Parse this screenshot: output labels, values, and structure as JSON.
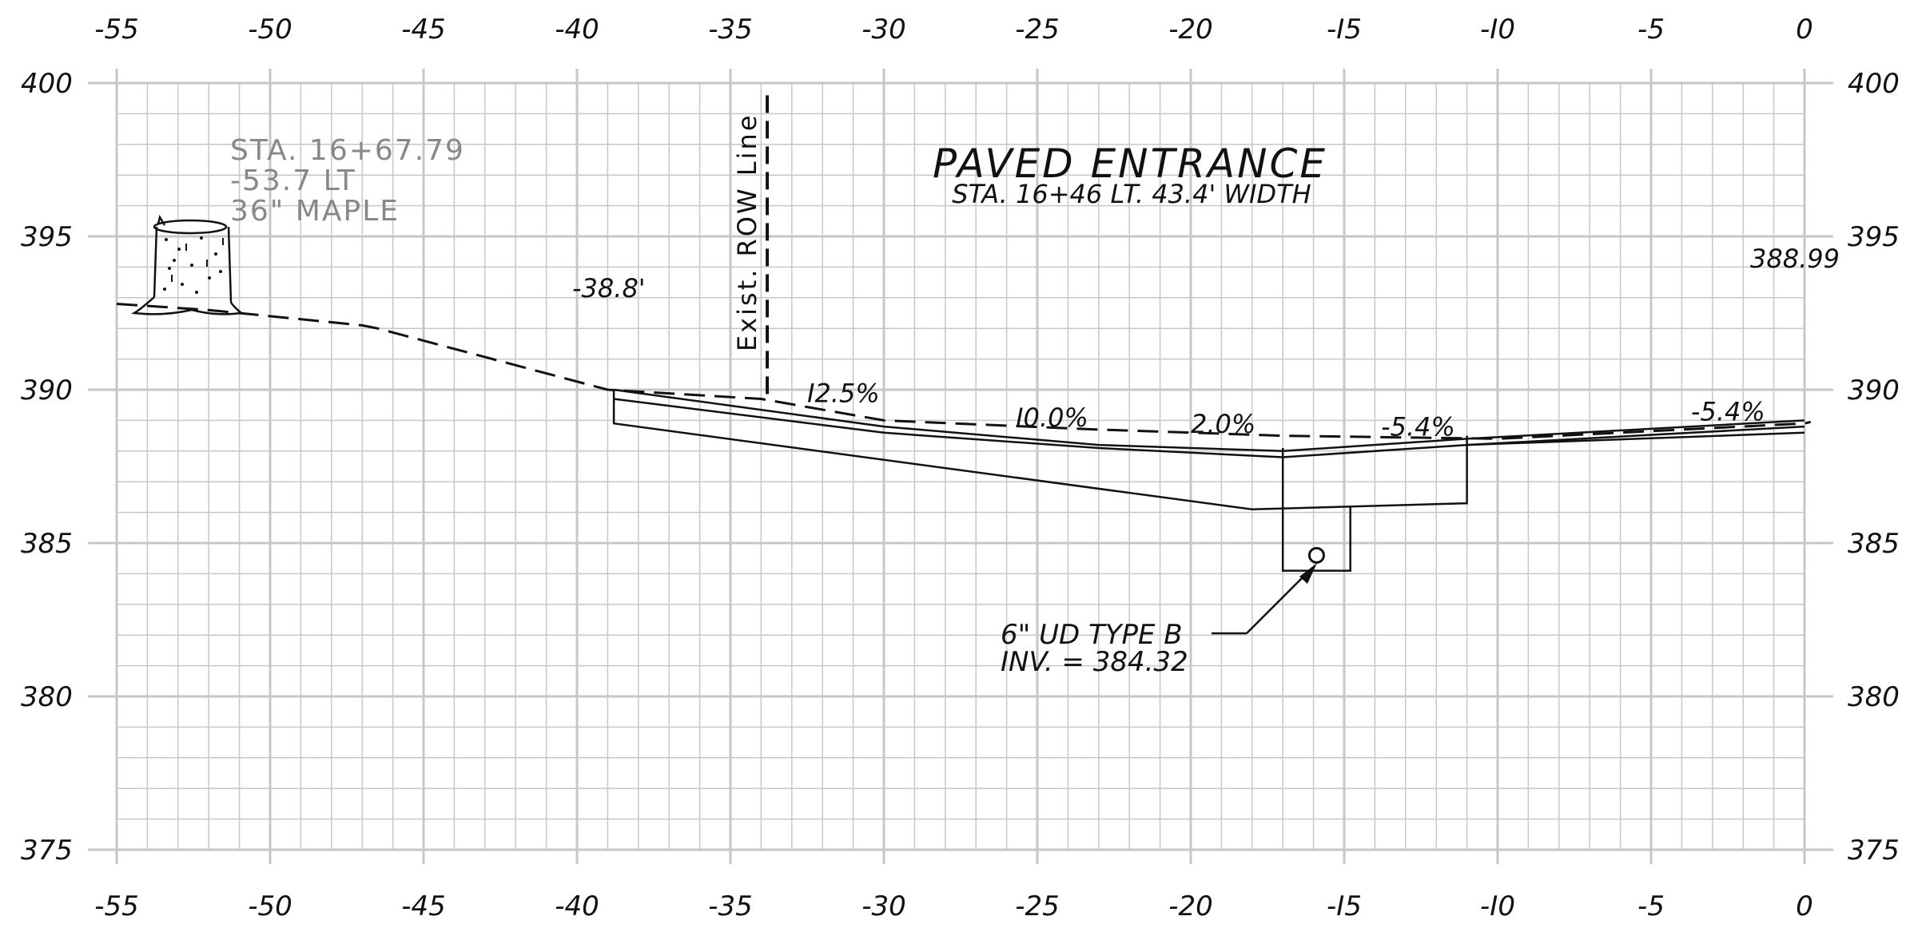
{
  "sheet": {
    "title": "PAVED ENTRANCE",
    "subtitle": "STA. 16+46  LT. 43.4' WIDTH",
    "x_axis": {
      "ticks": [
        -55,
        -50,
        -45,
        -40,
        -35,
        -30,
        -25,
        -20,
        -15,
        -10,
        -5,
        0
      ],
      "tick_labels": [
        "-55",
        "-50",
        "-45",
        "-40",
        "-35",
        "-30",
        "-25",
        "-20",
        "-I5",
        "-I0",
        "-5",
        "0"
      ]
    },
    "y_axis": {
      "ticks": [
        400,
        395,
        390,
        385,
        380,
        375
      ],
      "tick_labels": [
        "400",
        "395",
        "390",
        "385",
        "380",
        "375"
      ]
    },
    "tree_note": [
      "STA. 16+67.79",
      "-53.7 LT",
      "36\" MAPLE"
    ],
    "row_line": {
      "label": "Exist. ROW Line",
      "offset": -33.8,
      "elev_top": 399.6,
      "elev_bottom": 389.6
    },
    "existing_ground_label": "-38.8'",
    "end_elevation_label": "388.99",
    "grade_labels": [
      {
        "text": "I2.5%",
        "offset": -32.5,
        "elev": 389.6
      },
      {
        "text": "I0.0%",
        "offset": -25.7,
        "elev": 388.8
      },
      {
        "text": "2.0%",
        "offset": -20,
        "elev": 388.6
      },
      {
        "text": "-5.4%",
        "offset": -13.8,
        "elev": 388.5
      },
      {
        "text": "-5.4%",
        "offset": -3.7,
        "elev": 389.0
      }
    ],
    "underdrain": {
      "label_line1": "6\" UD  TYPE  B",
      "label_line2": "INV. = 384.32",
      "offset": -15.9,
      "elev": 384.6
    },
    "existing_ground": [
      [
        -55,
        392.8
      ],
      [
        -52,
        392.6
      ],
      [
        -47,
        392.1
      ],
      [
        -46.5,
        392.0
      ],
      [
        -39,
        390.0
      ],
      [
        -34,
        389.7
      ],
      [
        -30,
        389.0
      ],
      [
        -23,
        388.7
      ],
      [
        -17,
        388.5
      ],
      [
        -10,
        388.4
      ],
      [
        0,
        388.9
      ],
      [
        0.2,
        388.95
      ]
    ],
    "proposed_top": [
      [
        -38.8,
        390.0
      ],
      [
        -30,
        388.8
      ],
      [
        -23,
        388.2
      ],
      [
        -17,
        388.0
      ],
      [
        -11,
        388.4
      ],
      [
        0,
        389.0
      ]
    ],
    "proposed_top_inner": [
      [
        -38.8,
        389.7
      ],
      [
        -30,
        388.6
      ],
      [
        -23,
        388.1
      ],
      [
        -17,
        387.8
      ],
      [
        -11,
        388.2
      ],
      [
        0,
        388.8
      ]
    ],
    "base_outline": [
      [
        -38.8,
        390.0
      ],
      [
        -38.8,
        388.9
      ],
      [
        -18,
        386.1
      ],
      [
        -11,
        386.3
      ],
      [
        -11,
        388.5
      ]
    ],
    "right_edge_line": [
      [
        -11,
        388.2
      ],
      [
        0,
        388.6
      ]
    ],
    "trench_outline": [
      [
        -17,
        388.1
      ],
      [
        -17,
        384.1
      ],
      [
        -14.8,
        384.1
      ],
      [
        -14.8,
        386.2
      ]
    ],
    "colors": {
      "grid": "#c7c7c7",
      "ink": "#111111",
      "note": "#888888"
    }
  }
}
